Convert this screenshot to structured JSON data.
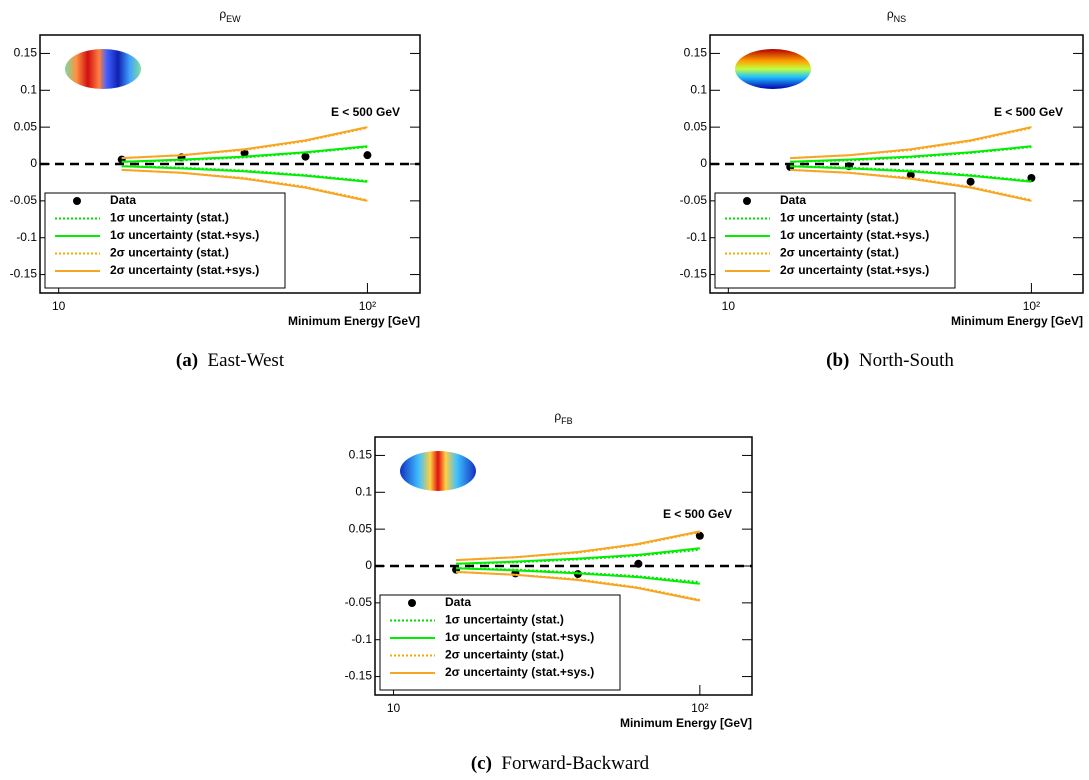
{
  "chart_data": [
    {
      "type": "line",
      "title": "ρ",
      "title_sub": "EW",
      "caption_label": "(a)",
      "caption": "East-West",
      "x_label": "Minimum Energy [GeV]",
      "annotation": "E < 500 GeV",
      "log_x": true,
      "reference_line": 0,
      "x": [
        16,
        25,
        40,
        63,
        100
      ],
      "xlim": [
        8.7,
        148
      ],
      "xticks": [
        10,
        {
          "value": 100,
          "label": "10²"
        }
      ],
      "ylim": [
        -0.175,
        0.175
      ],
      "yticks": [
        0.15,
        0.1,
        0.05,
        0,
        -0.05,
        -0.1,
        -0.15
      ],
      "series": [
        {
          "name": "Data",
          "color": "#000000",
          "style": "marker",
          "values": [
            0.006,
            0.009,
            0.015,
            0.01,
            0.012
          ]
        },
        {
          "name": "1σ uncertainty (stat.)",
          "color": "#00dd00",
          "style": "dotted",
          "values": [
            0.003,
            0.005,
            0.009,
            0.015,
            0.023
          ],
          "lower_values": [
            -0.003,
            -0.005,
            -0.009,
            -0.015,
            -0.023
          ]
        },
        {
          "name": "1σ uncertainty (stat.+sys.)",
          "color": "#00ee00",
          "style": "solid",
          "values": [
            0.003,
            0.006,
            0.01,
            0.016,
            0.024
          ],
          "lower_values": [
            -0.003,
            -0.006,
            -0.01,
            -0.016,
            -0.024
          ]
        },
        {
          "name": "2σ uncertainty (stat.)",
          "color": "#ffa500",
          "style": "dotted",
          "values": [
            0.008,
            0.012,
            0.019,
            0.031,
            0.049
          ],
          "lower_values": [
            -0.008,
            -0.012,
            -0.019,
            -0.031,
            -0.049
          ]
        },
        {
          "name": "2σ uncertainty (stat.+sys.)",
          "color": "#f5a623",
          "style": "solid",
          "values": [
            0.008,
            0.012,
            0.02,
            0.032,
            0.05
          ],
          "lower_values": [
            -0.008,
            -0.012,
            -0.02,
            -0.032,
            -0.05
          ]
        }
      ]
    },
    {
      "type": "line",
      "title": "ρ",
      "title_sub": "NS",
      "caption_label": "(b)",
      "caption": "North-South",
      "x_label": "Minimum Energy [GeV]",
      "annotation": "E < 500 GeV",
      "log_x": true,
      "reference_line": 0,
      "x": [
        16,
        25,
        40,
        63,
        100
      ],
      "xlim": [
        8.7,
        148
      ],
      "xticks": [
        10,
        {
          "value": 100,
          "label": "10²"
        }
      ],
      "ylim": [
        -0.175,
        0.175
      ],
      "yticks": [
        0.15,
        0.1,
        0.05,
        0,
        -0.05,
        -0.1,
        -0.15
      ],
      "series": [
        {
          "name": "Data",
          "color": "#000000",
          "style": "marker",
          "values": [
            -0.004,
            -0.003,
            -0.015,
            -0.024,
            -0.019
          ]
        },
        {
          "name": "1σ uncertainty (stat.)",
          "color": "#00dd00",
          "style": "dotted",
          "values": [
            0.003,
            0.005,
            0.009,
            0.015,
            0.023
          ],
          "lower_values": [
            -0.003,
            -0.005,
            -0.009,
            -0.015,
            -0.023
          ]
        },
        {
          "name": "1σ uncertainty (stat.+sys.)",
          "color": "#00ee00",
          "style": "solid",
          "values": [
            0.003,
            0.006,
            0.01,
            0.016,
            0.024
          ],
          "lower_values": [
            -0.003,
            -0.006,
            -0.01,
            -0.016,
            -0.024
          ]
        },
        {
          "name": "2σ uncertainty (stat.)",
          "color": "#ffa500",
          "style": "dotted",
          "values": [
            0.008,
            0.012,
            0.019,
            0.031,
            0.049
          ],
          "lower_values": [
            -0.008,
            -0.012,
            -0.019,
            -0.031,
            -0.049
          ]
        },
        {
          "name": "2σ uncertainty (stat.+sys.)",
          "color": "#f5a623",
          "style": "solid",
          "values": [
            0.008,
            0.012,
            0.02,
            0.032,
            0.05
          ],
          "lower_values": [
            -0.008,
            -0.012,
            -0.02,
            -0.032,
            -0.05
          ]
        }
      ]
    },
    {
      "type": "line",
      "title": "ρ",
      "title_sub": "FB",
      "caption_label": "(c)",
      "caption": "Forward-Backward",
      "x_label": "Minimum Energy [GeV]",
      "annotation": "E < 500 GeV",
      "log_x": true,
      "reference_line": 0,
      "x": [
        16,
        25,
        40,
        63,
        100
      ],
      "xlim": [
        8.7,
        148
      ],
      "xticks": [
        10,
        {
          "value": 100,
          "label": "10²"
        }
      ],
      "ylim": [
        -0.175,
        0.175
      ],
      "yticks": [
        0.15,
        0.1,
        0.05,
        0,
        -0.05,
        -0.1,
        -0.15
      ],
      "series": [
        {
          "name": "Data",
          "color": "#000000",
          "style": "marker",
          "values": [
            -0.005,
            -0.01,
            -0.011,
            0.003,
            0.041
          ]
        },
        {
          "name": "1σ uncertainty (stat.)",
          "color": "#00dd00",
          "style": "dotted",
          "values": [
            0.003,
            0.005,
            0.009,
            0.014,
            0.022
          ],
          "lower_values": [
            -0.003,
            -0.005,
            -0.009,
            -0.014,
            -0.022
          ]
        },
        {
          "name": "1σ uncertainty (stat.+sys.)",
          "color": "#00ee00",
          "style": "solid",
          "values": [
            0.003,
            0.006,
            0.01,
            0.015,
            0.024
          ],
          "lower_values": [
            -0.003,
            -0.006,
            -0.01,
            -0.015,
            -0.024
          ]
        },
        {
          "name": "2σ uncertainty (stat.)",
          "color": "#ffa500",
          "style": "dotted",
          "values": [
            0.008,
            0.012,
            0.018,
            0.029,
            0.046
          ],
          "lower_values": [
            -0.008,
            -0.012,
            -0.018,
            -0.029,
            -0.046
          ]
        },
        {
          "name": "2σ uncertainty (stat.+sys.)",
          "color": "#f5a623",
          "style": "solid",
          "values": [
            0.008,
            0.012,
            0.019,
            0.03,
            0.047
          ],
          "lower_values": [
            -0.008,
            -0.012,
            -0.019,
            -0.03,
            -0.047
          ]
        }
      ]
    }
  ]
}
